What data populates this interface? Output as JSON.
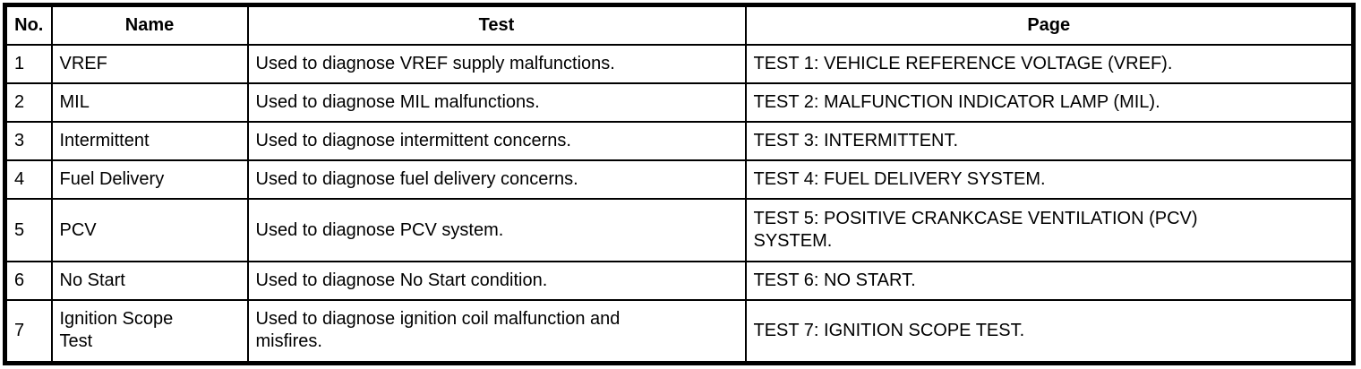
{
  "colors": {
    "background": "#ffffff",
    "border": "#000000",
    "text": "#000000"
  },
  "table": {
    "columns": [
      {
        "key": "no",
        "label": "No."
      },
      {
        "key": "name",
        "label": "Name"
      },
      {
        "key": "test",
        "label": "Test"
      },
      {
        "key": "page",
        "label": "Page"
      }
    ],
    "rows": [
      {
        "no": "1",
        "name": "VREF",
        "test": "Used to diagnose VREF supply malfunctions.",
        "page": "TEST 1: VEHICLE REFERENCE VOLTAGE (VREF)."
      },
      {
        "no": "2",
        "name": "MIL",
        "test": "Used to diagnose MIL malfunctions.",
        "page": "TEST 2: MALFUNCTION INDICATOR LAMP (MIL)."
      },
      {
        "no": "3",
        "name": "Intermittent",
        "test": "Used to diagnose intermittent concerns.",
        "page": "TEST 3: INTERMITTENT."
      },
      {
        "no": "4",
        "name": "Fuel Delivery",
        "test": "Used to diagnose fuel delivery concerns.",
        "page": "TEST 4: FUEL DELIVERY SYSTEM."
      },
      {
        "no": "5",
        "name": "PCV",
        "test": "Used to diagnose PCV system.",
        "page": "TEST 5: POSITIVE CRANKCASE VENTILATION (PCV)\nSYSTEM."
      },
      {
        "no": "6",
        "name": "No Start",
        "test": "Used to diagnose No Start condition.",
        "page": "TEST 6: NO START."
      },
      {
        "no": "7",
        "name": "Ignition Scope\nTest",
        "test": "Used to diagnose ignition coil malfunction and\nmisfires.",
        "page": "TEST 7: IGNITION SCOPE TEST."
      }
    ]
  }
}
